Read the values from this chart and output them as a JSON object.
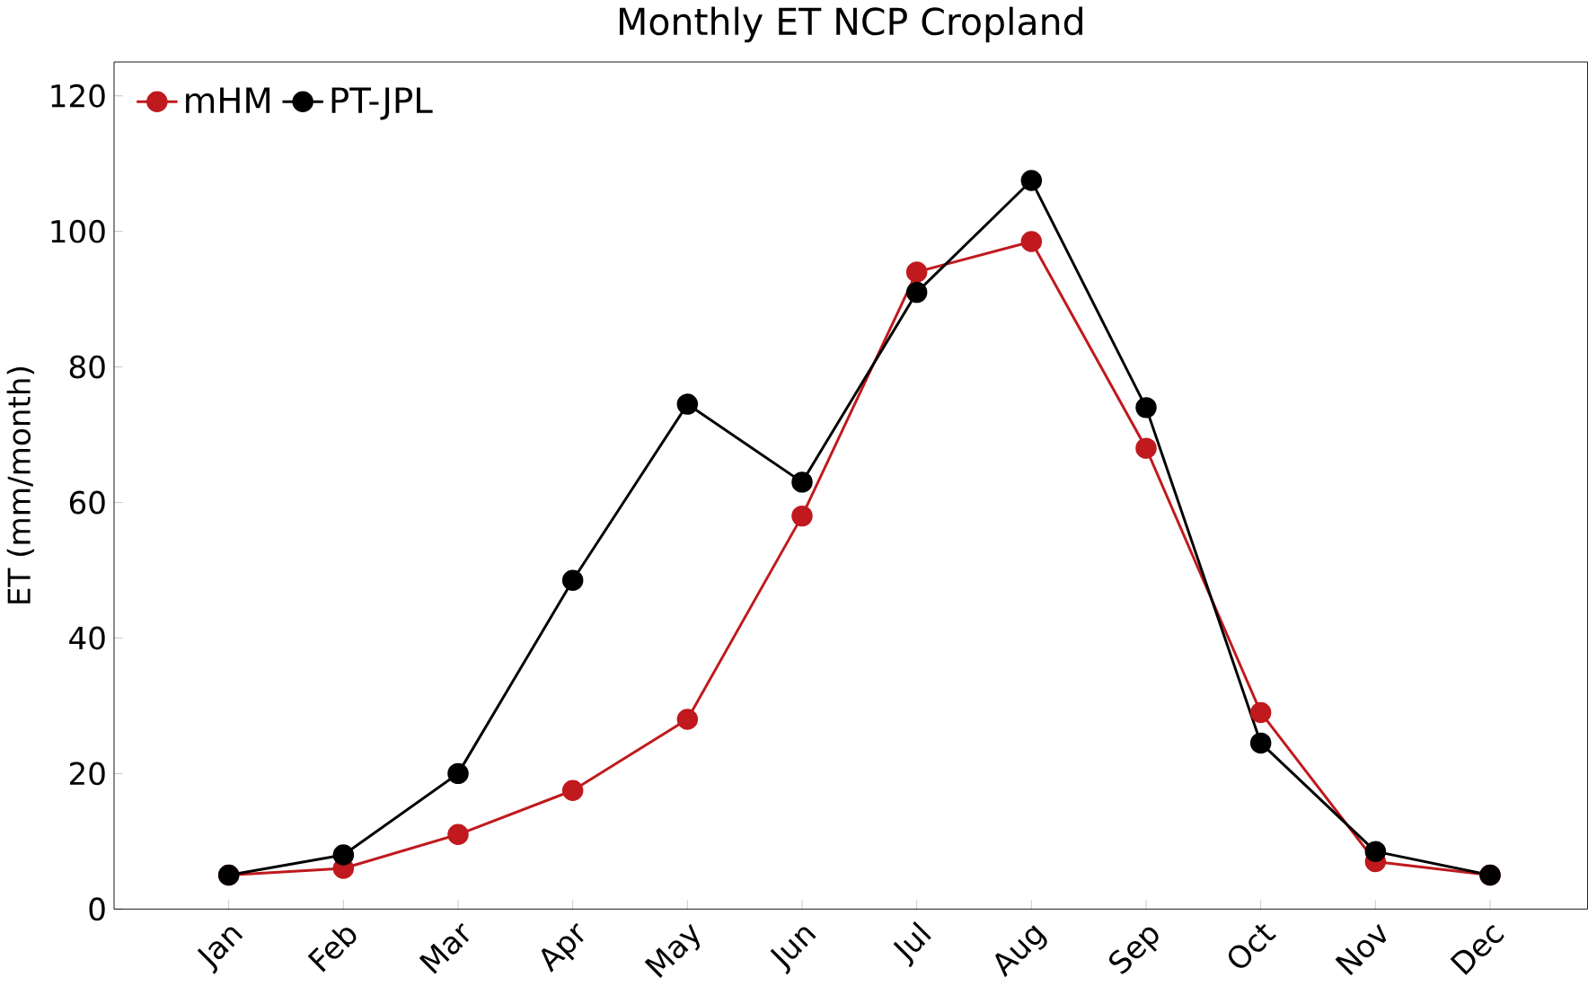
{
  "chart_data": {
    "type": "line",
    "title": "Monthly ET NCP Cropland",
    "ylabel": "ET (mm/month)",
    "categories": [
      "Jan",
      "Feb",
      "Mar",
      "Apr",
      "May",
      "Jun",
      "Jul",
      "Aug",
      "Sep",
      "Oct",
      "Nov",
      "Dec"
    ],
    "series": [
      {
        "name": "mHM",
        "color": "#c0191e",
        "values": [
          5,
          6,
          11,
          17.5,
          28,
          58,
          94,
          98.5,
          68,
          29,
          7,
          5
        ]
      },
      {
        "name": "PT-JPL",
        "color": "#000000",
        "values": [
          5,
          8,
          20,
          48.5,
          74.5,
          63,
          91,
          107.5,
          74,
          24.5,
          8.5,
          5
        ]
      }
    ],
    "ylim": [
      0,
      125
    ],
    "yticks": [
      0,
      20,
      40,
      60,
      80,
      100,
      120
    ],
    "legend": "top left",
    "marker": "circle",
    "line_style": "solid",
    "grid": false
  }
}
